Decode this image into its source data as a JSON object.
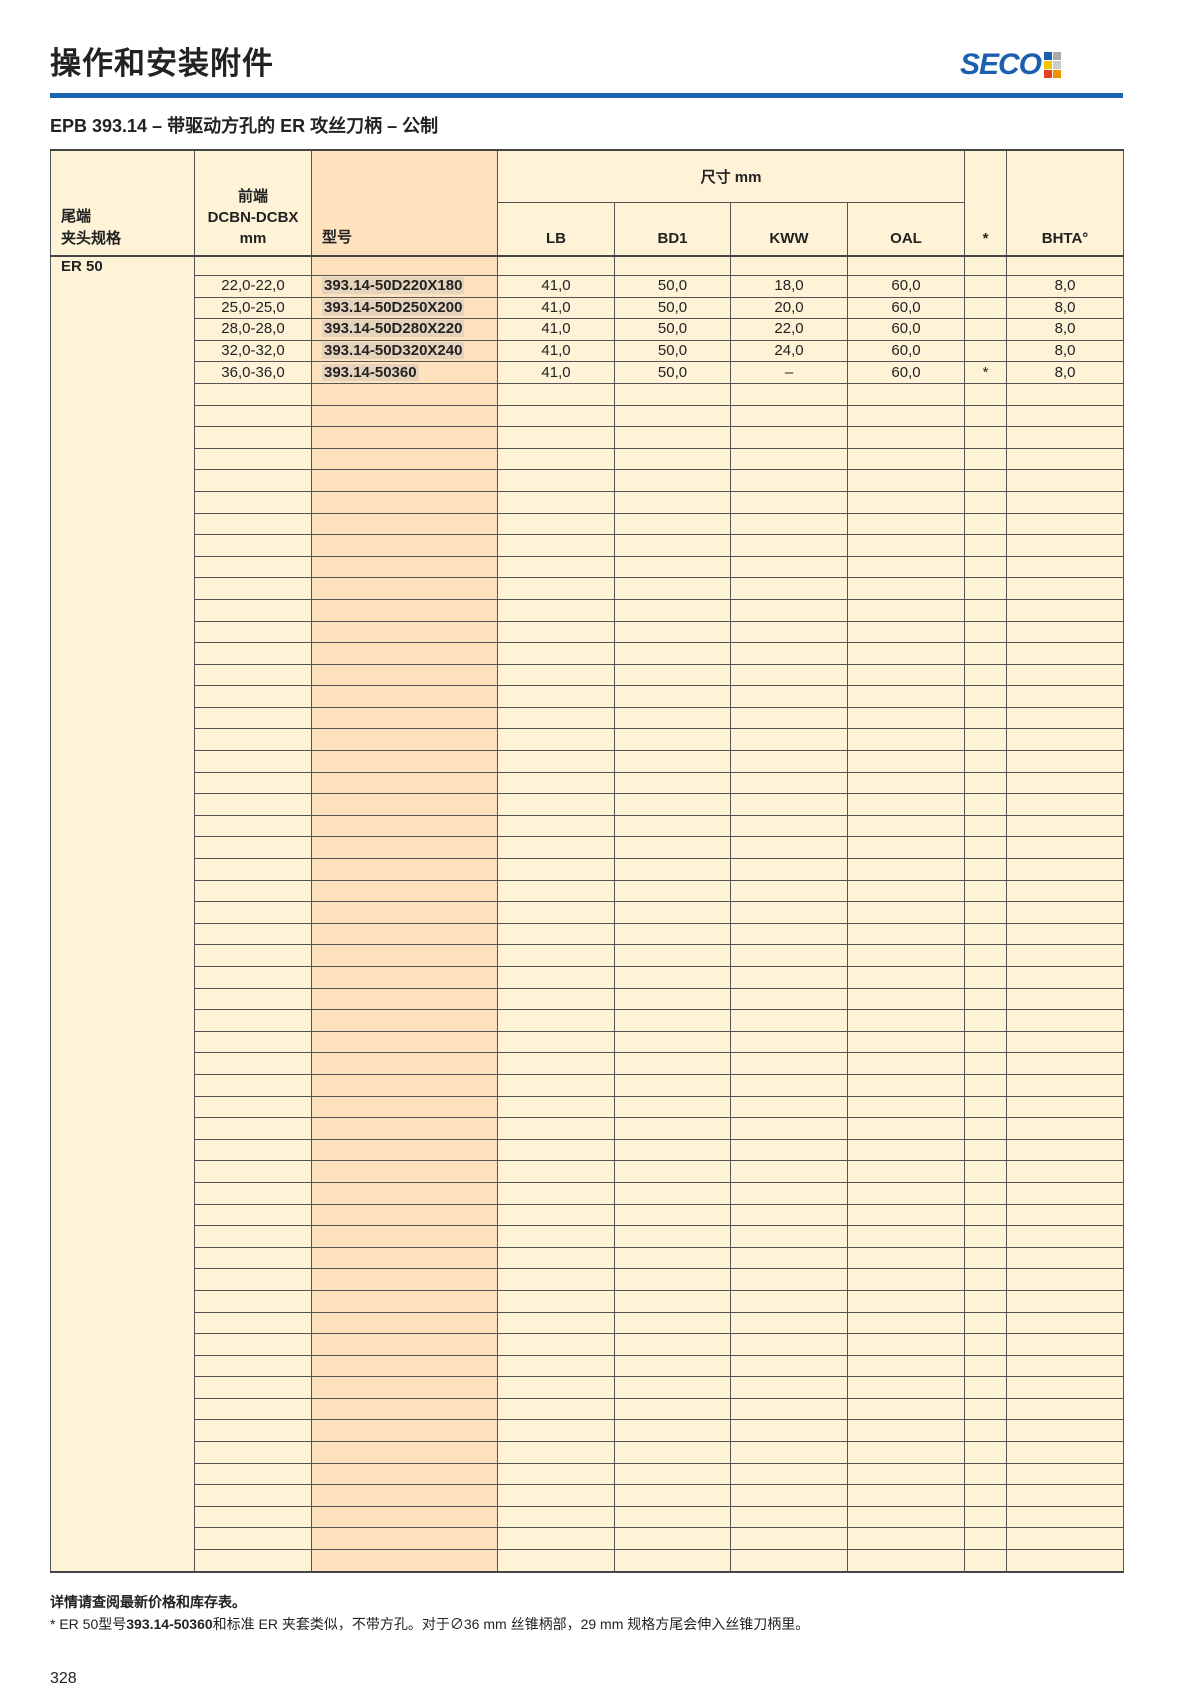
{
  "header": {
    "title": "操作和安装附件",
    "logo_text": "SECO",
    "subtitle": "EPB 393.14 – 带驱动方孔的 ER 攻丝刀柄 – 公制"
  },
  "table": {
    "headers": {
      "collet_line1": "尾端",
      "collet_line2": "夹头规格",
      "front_line1": "前端",
      "front_line2": "DCBN-DCBX",
      "front_line3": "mm",
      "model": "型号",
      "dims_group": "尺寸 mm",
      "lb": "LB",
      "bd1": "BD1",
      "kww": "KWW",
      "oal": "OAL",
      "star": "*",
      "bhta": "BHTA°"
    },
    "collet": "ER 50",
    "rows": [
      {
        "range": "22,0-22,0",
        "model": "393.14-50D220X180",
        "lb": "41,0",
        "bd1": "50,0",
        "kww": "18,0",
        "oal": "60,0",
        "star": "",
        "bhta": "8,0"
      },
      {
        "range": "25,0-25,0",
        "model": "393.14-50D250X200",
        "lb": "41,0",
        "bd1": "50,0",
        "kww": "20,0",
        "oal": "60,0",
        "star": "",
        "bhta": "8,0"
      },
      {
        "range": "28,0-28,0",
        "model": "393.14-50D280X220",
        "lb": "41,0",
        "bd1": "50,0",
        "kww": "22,0",
        "oal": "60,0",
        "star": "",
        "bhta": "8,0"
      },
      {
        "range": "32,0-32,0",
        "model": "393.14-50D320X240",
        "lb": "41,0",
        "bd1": "50,0",
        "kww": "24,0",
        "oal": "60,0",
        "star": "",
        "bhta": "8,0"
      },
      {
        "range": "36,0-36,0",
        "model": "393.14-50360",
        "lb": "41,0",
        "bd1": "50,0",
        "kww": "–",
        "oal": "60,0",
        "star": "*",
        "bhta": "8,0"
      }
    ]
  },
  "footer": {
    "note1": "详情请查阅最新价格和库存表。",
    "note2_prefix": "* ER 50型号",
    "note2_model": "393.14-50360",
    "note2_suffix": "和标准 ER 夹套类似，不带方孔。对于∅36 mm 丝锥柄部，29 mm 规格方尾会伸入丝锥刀柄里。",
    "page_number": "328"
  },
  "colors": {
    "brand_blue": "#1b66b3",
    "table_bg": "#fef3d7",
    "model_col": "#fde2bd"
  }
}
